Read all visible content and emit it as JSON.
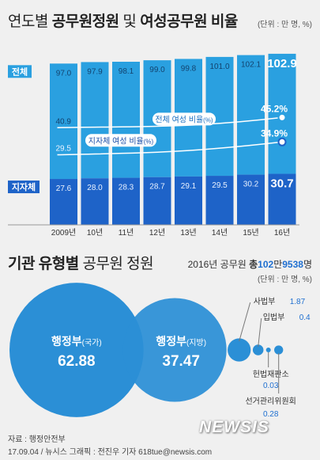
{
  "title_plain": "연도별 ",
  "title_bold": "공무원정원",
  "title_mid": " 및 ",
  "title_bold2": "여성공무원",
  "title_tail": " 비율",
  "unit1": "(단위 : 만 명, %)",
  "colors": {
    "total_bar": "#2aa0e0",
    "local_bar": "#1e63c8",
    "circle": "#2b8fd6",
    "circle_dark": "#1b5ea8",
    "accent": "#1f8fe0"
  },
  "chart_data": [
    {
      "type": "bar",
      "categories": [
        "2009년",
        "10년",
        "11년",
        "12년",
        "13년",
        "14년",
        "15년",
        "16년"
      ],
      "series": [
        {
          "name": "전체",
          "values": [
            97.0,
            97.9,
            98.1,
            99.0,
            99.8,
            101.0,
            102.1,
            102.9
          ]
        },
        {
          "name": "지자체",
          "values": [
            27.6,
            28.0,
            28.3,
            28.7,
            29.1,
            29.5,
            30.2,
            30.7
          ]
        }
      ],
      "labels": {
        "total": [
          "97.0",
          "97.9",
          "98.1",
          "99.0",
          "99.8",
          "101.0",
          "102.1",
          "102.9"
        ],
        "local": [
          "27.6",
          "28.0",
          "28.3",
          "28.7",
          "29.1",
          "29.5",
          "30.2",
          "30.7"
        ]
      },
      "lines": [
        {
          "name": "전체 여성 비율",
          "unit": "(%)",
          "start": 40.9,
          "end": 45.2,
          "start_label": "40.9",
          "end_label": "45.2%"
        },
        {
          "name": "지자체 여성 비율",
          "unit": "(%)",
          "start": 29.5,
          "end": 34.9,
          "start_label": "29.5",
          "end_label": "34.9%"
        }
      ]
    },
    {
      "type": "bubble",
      "title_bold": "기관 유형별",
      "title_plain": " 공무원 정원",
      "total_prefix": "2016년 공무원 ",
      "total_bold": "총",
      "total_n1": "102",
      "total_u1": "만",
      "total_n2": "9538",
      "total_u2": "명",
      "unit": "(단위 : 만 명, %)",
      "items": [
        {
          "name": "행정부",
          "sub": "(국가)",
          "value": 62.88,
          "label": "62.88"
        },
        {
          "name": "행정부",
          "sub": "(지방)",
          "value": 37.47,
          "label": "37.47"
        },
        {
          "name": "사법부",
          "value": 1.87,
          "label": "1.87"
        },
        {
          "name": "입법부",
          "value": 0.4,
          "label": "0.4"
        },
        {
          "name": "헌법재판소",
          "value": 0.03,
          "label": "0.03"
        },
        {
          "name": "선거관리위원회",
          "value": 0.28,
          "label": "0.28"
        }
      ]
    }
  ],
  "source": "자료 : 행정안전부",
  "credit": "17.09.04 / 뉴시스 그래픽 : 전진우 기자 618tue@newsis.com",
  "logo": "NEWSIS"
}
